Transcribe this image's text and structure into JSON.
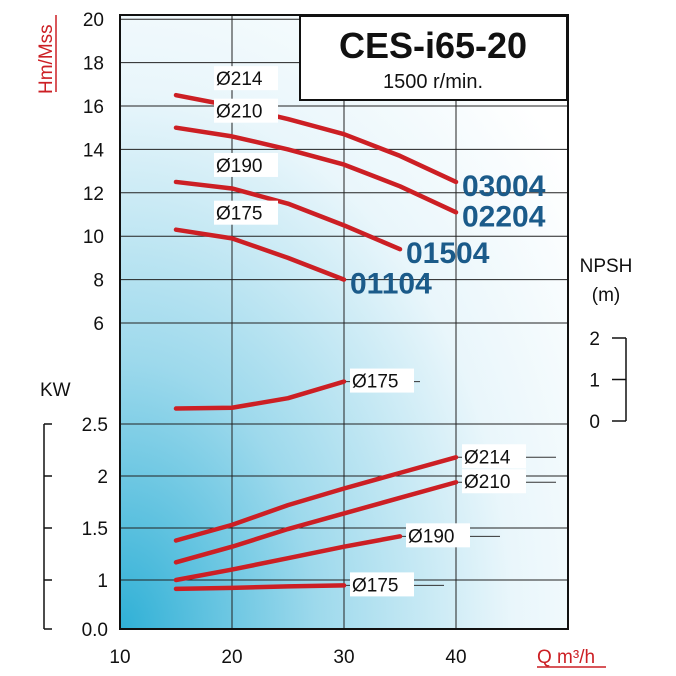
{
  "chart_data": {
    "type": "line",
    "title": "CES-i65-20",
    "subtitle": "1500 r/min.",
    "xlabel": "Q m³/h",
    "x_ticks": [
      10,
      20,
      30,
      40
    ],
    "xlim": [
      10,
      50
    ],
    "head": {
      "ylabel": "Hm/Mss",
      "ylim": [
        6,
        20
      ],
      "y_ticks": [
        6,
        8,
        10,
        12,
        14,
        16,
        18,
        20
      ],
      "series": [
        {
          "name": "Ø214",
          "model": "03004",
          "x": [
            15,
            20,
            25,
            30,
            35,
            40
          ],
          "y": [
            16.5,
            16.0,
            15.4,
            14.7,
            13.7,
            12.5
          ]
        },
        {
          "name": "Ø210",
          "model": "02204",
          "x": [
            15,
            20,
            25,
            30,
            35,
            40
          ],
          "y": [
            15.0,
            14.6,
            14.0,
            13.3,
            12.3,
            11.1
          ]
        },
        {
          "name": "Ø190",
          "model": "01504",
          "x": [
            15,
            20,
            25,
            30,
            35
          ],
          "y": [
            12.5,
            12.2,
            11.5,
            10.5,
            9.4
          ]
        },
        {
          "name": "Ø175",
          "model": "01104",
          "x": [
            15,
            20,
            25,
            30
          ],
          "y": [
            10.3,
            9.9,
            9.0,
            8.0
          ]
        }
      ]
    },
    "npsh": {
      "label": "NPSH",
      "unit": "(m)",
      "ticks": [
        0,
        1,
        2
      ],
      "series": [
        {
          "name": "Ø175",
          "x": [
            15,
            20,
            25,
            30
          ],
          "y": [
            0.3,
            0.32,
            0.55,
            0.95
          ]
        }
      ]
    },
    "power": {
      "ylabel": "KW",
      "ylim": [
        0.0,
        2.5
      ],
      "y_ticks": [
        "0.0",
        "1",
        "1.5",
        "2",
        "2.5"
      ],
      "series": [
        {
          "name": "Ø214",
          "x": [
            15,
            20,
            25,
            30,
            35,
            40
          ],
          "y": [
            1.38,
            1.53,
            1.72,
            1.88,
            2.03,
            2.18
          ]
        },
        {
          "name": "Ø210",
          "x": [
            15,
            20,
            25,
            30,
            35,
            40
          ],
          "y": [
            1.17,
            1.32,
            1.49,
            1.64,
            1.79,
            1.94
          ]
        },
        {
          "name": "Ø190",
          "x": [
            15,
            20,
            25,
            30,
            35
          ],
          "y": [
            1.0,
            1.1,
            1.21,
            1.32,
            1.42
          ]
        },
        {
          "name": "Ø175",
          "x": [
            15,
            20,
            25,
            30
          ],
          "y": [
            0.82,
            0.84,
            0.87,
            0.89
          ]
        }
      ]
    }
  },
  "colors": {
    "curve": "#cc1f24",
    "model_label": "#1b5b8a",
    "bg_light": "#ffffff",
    "bg_dark": "#42b7d8"
  }
}
